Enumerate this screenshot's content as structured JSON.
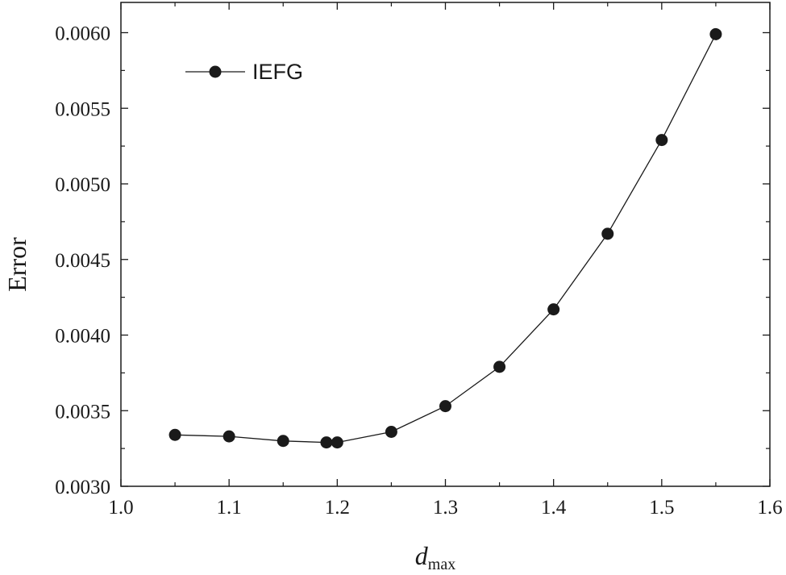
{
  "chart_data": {
    "type": "line",
    "title": "",
    "xlabel_main": "d",
    "xlabel_sub": "max",
    "ylabel": "Error",
    "xlim": [
      1.0,
      1.6
    ],
    "ylim": [
      0.003,
      0.0062
    ],
    "x_ticks": [
      "1.0",
      "1.1",
      "1.2",
      "1.3",
      "1.4",
      "1.5",
      "1.6"
    ],
    "y_ticks": [
      "0.0030",
      "0.0035",
      "0.0040",
      "0.0045",
      "0.0050",
      "0.0055",
      "0.0060"
    ],
    "grid": false,
    "legend_position": "top-left",
    "series": [
      {
        "name": "IEFG",
        "color": "#1a1a1a",
        "marker": "filled-circle",
        "x": [
          1.05,
          1.1,
          1.15,
          1.19,
          1.2,
          1.25,
          1.3,
          1.35,
          1.4,
          1.45,
          1.5,
          1.55
        ],
        "y": [
          0.00334,
          0.00333,
          0.0033,
          0.00329,
          0.00329,
          0.00336,
          0.00353,
          0.00379,
          0.00417,
          0.00467,
          0.00529,
          0.00599
        ]
      }
    ]
  }
}
